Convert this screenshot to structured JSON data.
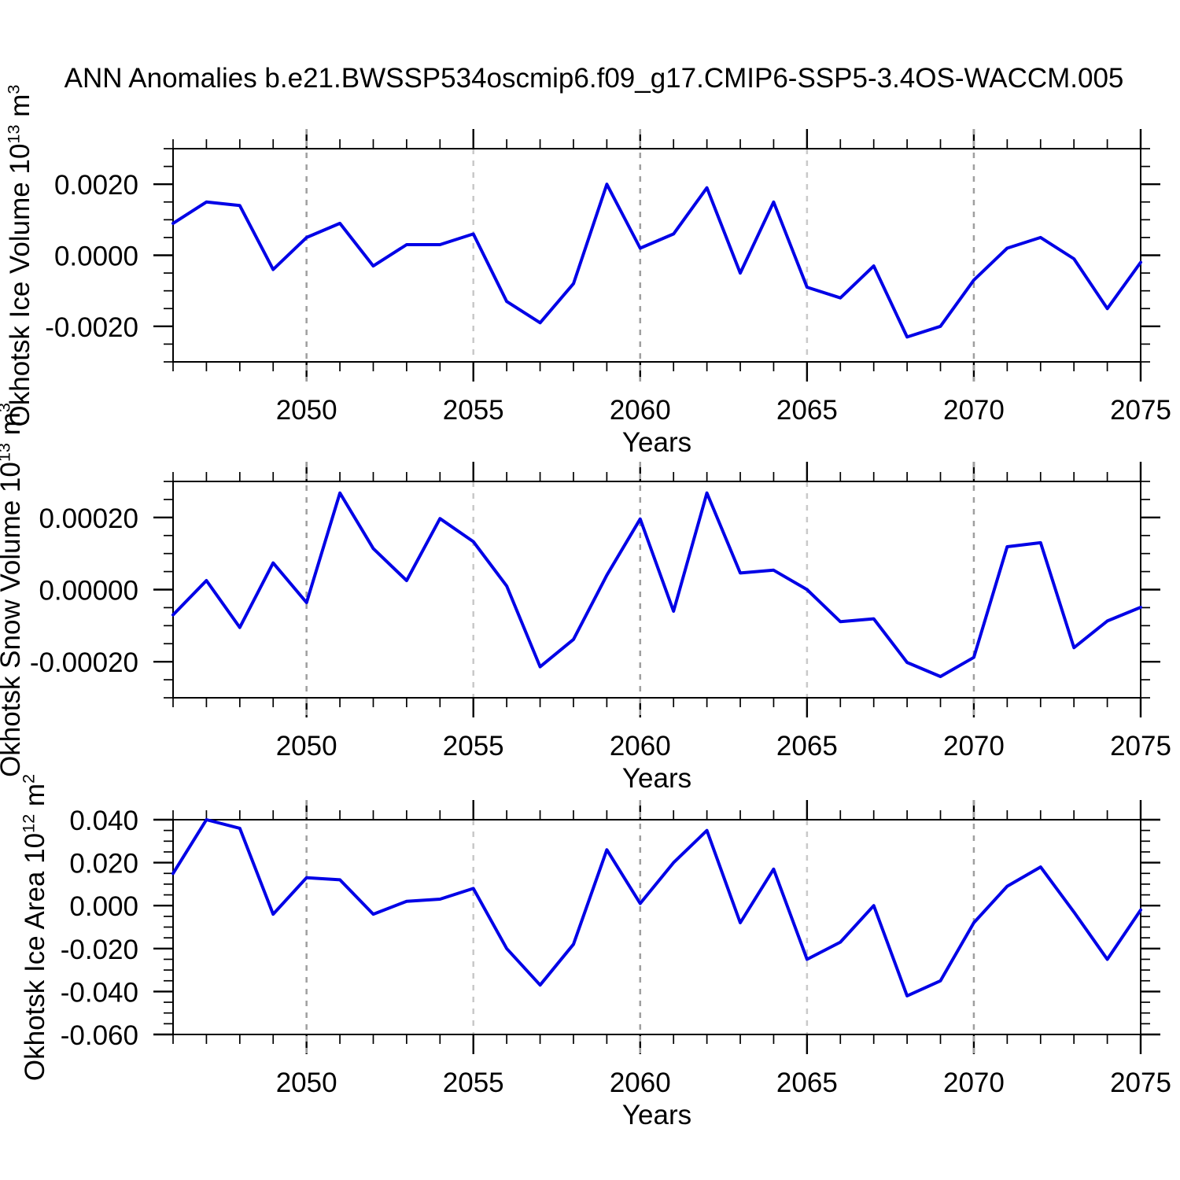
{
  "title": "ANN Anomalies b.e21.BWSSP534oscmip6.f09_g17.CMIP6-SSP5-3.4OS-WACCM.005",
  "xlabel": "Years",
  "chart_data": [
    {
      "type": "line",
      "name": "okhotsk-ice-volume",
      "ylabel_parts": {
        "text": "Okhotsk Ice Volume 10",
        "sup1": "13",
        "unit": " m",
        "sup2": "3"
      },
      "line_color": "#0000e6",
      "xlim": [
        2046,
        2075
      ],
      "xticks": [
        2050,
        2055,
        2060,
        2065,
        2070,
        2075
      ],
      "x_minor_step": 1,
      "gridlines": [
        {
          "year": 2050,
          "shade": "dark"
        },
        {
          "year": 2055,
          "shade": "light"
        },
        {
          "year": 2060,
          "shade": "dark"
        },
        {
          "year": 2065,
          "shade": "light"
        },
        {
          "year": 2070,
          "shade": "dark"
        }
      ],
      "ylim": [
        -0.003,
        0.003
      ],
      "y_minor_step": 0.0005,
      "yticks": [
        {
          "value": 0.002,
          "label": "0.0020"
        },
        {
          "value": 0.0,
          "label": "0.0000"
        },
        {
          "value": -0.002,
          "label": "-0.0020"
        }
      ],
      "x": [
        2046,
        2047,
        2048,
        2049,
        2050,
        2051,
        2052,
        2053,
        2054,
        2055,
        2056,
        2057,
        2058,
        2059,
        2060,
        2061,
        2062,
        2063,
        2064,
        2065,
        2066,
        2067,
        2068,
        2069,
        2070,
        2071,
        2072,
        2073,
        2074,
        2075
      ],
      "values": [
        0.0009,
        0.0015,
        0.0014,
        -0.0004,
        0.0005,
        0.0009,
        -0.0003,
        0.0003,
        0.0003,
        0.0006,
        -0.0013,
        -0.0019,
        -0.0008,
        0.002,
        0.0002,
        0.0006,
        0.0019,
        -0.0005,
        0.0015,
        -0.0009,
        -0.0012,
        -0.0003,
        -0.0023,
        -0.002,
        -0.0007,
        0.0002,
        0.0005,
        -0.0001,
        -0.0015,
        -0.0002
      ]
    },
    {
      "type": "line",
      "name": "okhotsk-snow-volume",
      "ylabel_parts": {
        "text": "Okhotsk Snow Volume 10",
        "sup1": "13",
        "unit": " m",
        "sup2": "3"
      },
      "line_color": "#0000e6",
      "xlim": [
        2046,
        2075
      ],
      "xticks": [
        2050,
        2055,
        2060,
        2065,
        2070,
        2075
      ],
      "x_minor_step": 1,
      "gridlines": [
        {
          "year": 2050,
          "shade": "dark"
        },
        {
          "year": 2055,
          "shade": "light"
        },
        {
          "year": 2060,
          "shade": "dark"
        },
        {
          "year": 2065,
          "shade": "light"
        },
        {
          "year": 2070,
          "shade": "dark"
        }
      ],
      "ylim": [
        -0.0003,
        0.0003
      ],
      "y_minor_step": 5e-05,
      "yticks": [
        {
          "value": 0.0002,
          "label": "0.00020"
        },
        {
          "value": 0.0,
          "label": "0.00000"
        },
        {
          "value": -0.0002,
          "label": "-0.00020"
        }
      ],
      "x": [
        2046,
        2047,
        2048,
        2049,
        2050,
        2051,
        2052,
        2053,
        2054,
        2055,
        2056,
        2057,
        2058,
        2059,
        2060,
        2061,
        2062,
        2063,
        2064,
        2065,
        2066,
        2067,
        2068,
        2069,
        2070,
        2071,
        2072,
        2073,
        2074,
        2075
      ],
      "values": [
        -7e-05,
        2.5e-05,
        -0.000105,
        7.4e-05,
        -3.6e-05,
        0.000268,
        0.000114,
        2.5e-05,
        0.000197,
        0.000133,
        1e-05,
        -0.000214,
        -0.000138,
        4e-05,
        0.000196,
        -6e-05,
        0.000268,
        4.6e-05,
        5.4e-05,
        0.0,
        -8.9e-05,
        -8.1e-05,
        -0.000202,
        -0.000241,
        -0.000188,
        0.000119,
        0.00013,
        -0.000161,
        -8.7e-05,
        -4.9e-05
      ]
    },
    {
      "type": "line",
      "name": "okhotsk-ice-area",
      "ylabel_parts": {
        "text": "Okhotsk Ice Area 10",
        "sup1": "12",
        "unit": " m",
        "sup2": "2"
      },
      "line_color": "#0000e6",
      "xlim": [
        2046,
        2075
      ],
      "xticks": [
        2050,
        2055,
        2060,
        2065,
        2070,
        2075
      ],
      "x_minor_step": 1,
      "gridlines": [
        {
          "year": 2050,
          "shade": "dark"
        },
        {
          "year": 2055,
          "shade": "light"
        },
        {
          "year": 2060,
          "shade": "dark"
        },
        {
          "year": 2065,
          "shade": "light"
        },
        {
          "year": 2070,
          "shade": "dark"
        }
      ],
      "ylim": [
        -0.06,
        0.04
      ],
      "y_minor_step": 0.005,
      "yticks": [
        {
          "value": 0.04,
          "label": "0.040"
        },
        {
          "value": 0.02,
          "label": "0.020"
        },
        {
          "value": 0.0,
          "label": "0.000"
        },
        {
          "value": -0.02,
          "label": "-0.020"
        },
        {
          "value": -0.04,
          "label": "-0.040"
        },
        {
          "value": -0.06,
          "label": "-0.060"
        }
      ],
      "x": [
        2046,
        2047,
        2048,
        2049,
        2050,
        2051,
        2052,
        2053,
        2054,
        2055,
        2056,
        2057,
        2058,
        2059,
        2060,
        2061,
        2062,
        2063,
        2064,
        2065,
        2066,
        2067,
        2068,
        2069,
        2070,
        2071,
        2072,
        2073,
        2074,
        2075
      ],
      "values": [
        0.015,
        0.04,
        0.036,
        -0.004,
        0.013,
        0.012,
        -0.004,
        0.002,
        0.003,
        0.008,
        -0.02,
        -0.037,
        -0.018,
        0.026,
        0.001,
        0.02,
        0.035,
        -0.008,
        0.017,
        -0.025,
        -0.017,
        0.0,
        -0.042,
        -0.035,
        -0.008,
        0.009,
        0.018,
        -0.003,
        -0.025,
        -0.002
      ]
    }
  ]
}
